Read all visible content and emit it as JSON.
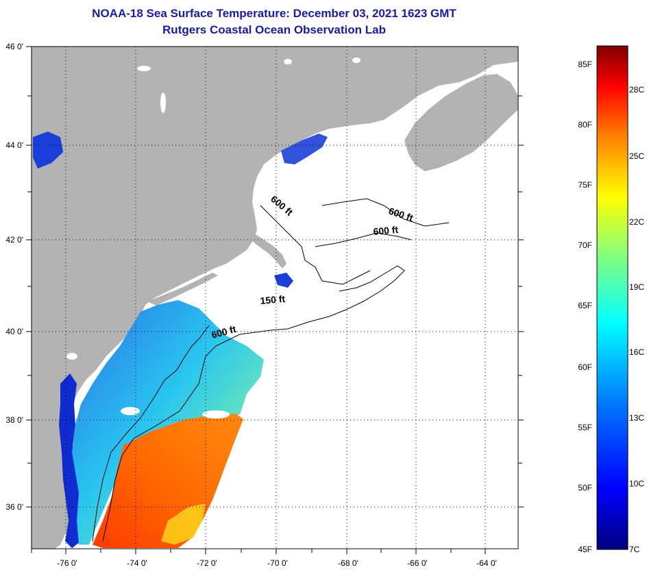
{
  "header": {
    "title": "NOAA-18 Sea Surface Temperature:  December 03, 2021 1623 GMT",
    "subtitle": "Rutgers Coastal Ocean Observation Lab"
  },
  "map": {
    "lon_range": [
      -77,
      -63
    ],
    "lat_range": [
      35,
      46
    ],
    "x_ticks": [
      "-76 0'",
      "-74 0'",
      "-72 0'",
      "-70 0'",
      "-68 0'",
      "-66 0'",
      "-64 0'"
    ],
    "y_ticks": [
      "36 0'",
      "38 0'",
      "40 0'",
      "42 0'",
      "44 0'",
      "46 0'"
    ],
    "contour_labels": [
      "600 ft",
      "600 ft",
      "600 ft",
      "150 ft",
      "600 ft"
    ],
    "land_color": "#b3b3b3",
    "water_color": "#ffffff"
  },
  "colorbar": {
    "fahrenheit_labels": [
      "85F",
      "80F",
      "75F",
      "70F",
      "65F",
      "60F",
      "55F",
      "50F",
      "45F"
    ],
    "celsius_labels": [
      "28C",
      "25C",
      "22C",
      "19C",
      "16C",
      "13C",
      "10C",
      "7C"
    ],
    "range_f": [
      45,
      86
    ],
    "colors": [
      "#00007f",
      "#0000ff",
      "#0080ff",
      "#00ffff",
      "#80ff80",
      "#ffff00",
      "#ff8000",
      "#ff0000",
      "#7f0000"
    ]
  }
}
